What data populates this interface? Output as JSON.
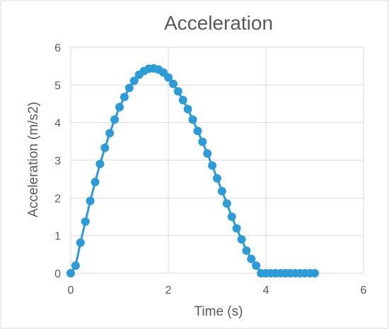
{
  "chart_data": {
    "type": "scatter",
    "title": "Acceleration",
    "xlabel": "Time (s)",
    "ylabel": "Acceleration (m/s2)",
    "xlim": [
      0,
      6
    ],
    "ylim": [
      0,
      6
    ],
    "xticks": [
      0,
      2,
      4,
      6
    ],
    "yticks": [
      0,
      1,
      2,
      3,
      4,
      5,
      6
    ],
    "grid": true,
    "legend": "none",
    "markers": true,
    "line": true,
    "colors": {
      "series": "#2e9bd6",
      "grid": "#d9d9d9",
      "text": "#595959",
      "border": "#d9d9d9"
    },
    "series": [
      {
        "x": [
          0,
          0.1,
          0.2,
          0.3,
          0.4,
          0.5,
          0.6,
          0.7,
          0.8,
          0.9,
          1.0,
          1.1,
          1.2,
          1.3,
          1.4,
          1.5,
          1.6,
          1.7,
          1.8,
          1.9,
          2.0,
          2.1,
          2.2,
          2.3,
          2.4,
          2.5,
          2.6,
          2.7,
          2.8,
          2.9,
          3.0,
          3.1,
          3.2,
          3.3,
          3.4,
          3.5,
          3.6,
          3.7,
          3.8,
          3.9,
          4.0,
          4.1,
          4.2,
          4.3,
          4.4,
          4.5,
          4.6,
          4.7,
          4.8,
          4.9,
          5.0
        ],
        "values": [
          0,
          0.2,
          0.81,
          1.37,
          1.92,
          2.42,
          2.9,
          3.33,
          3.72,
          4.08,
          4.41,
          4.68,
          4.92,
          5.11,
          5.27,
          5.37,
          5.43,
          5.44,
          5.41,
          5.33,
          5.2,
          5.03,
          4.83,
          4.6,
          4.36,
          4.08,
          3.78,
          3.49,
          3.18,
          2.86,
          2.52,
          2.18,
          1.85,
          1.5,
          1.19,
          0.9,
          0.6,
          0.38,
          0.2,
          0,
          0,
          0,
          0,
          0,
          0,
          0,
          0,
          0,
          0,
          0,
          0
        ]
      }
    ]
  }
}
